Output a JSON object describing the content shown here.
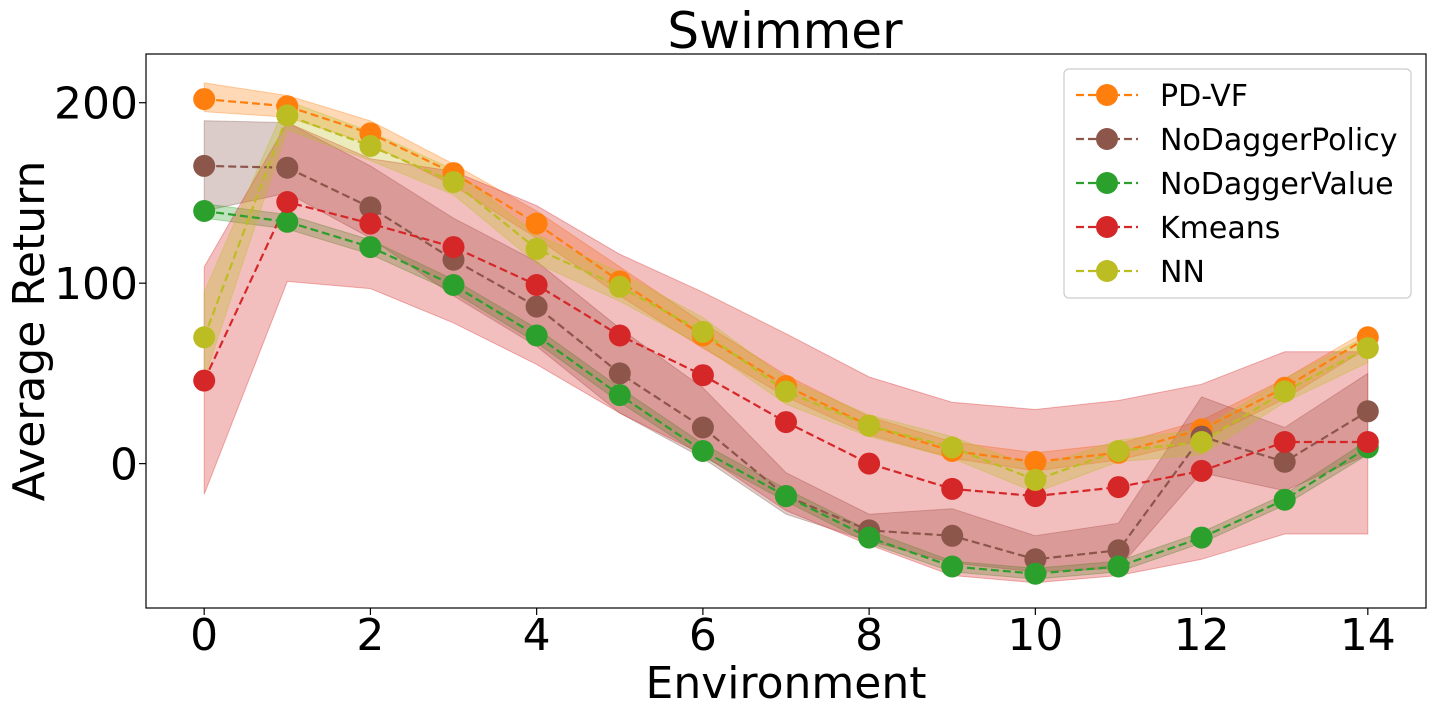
{
  "chart_data": {
    "type": "line",
    "title": "Swimmer",
    "xlabel": "Environment",
    "ylabel": "Average Return",
    "xlim": [
      -0.7,
      14.7
    ],
    "ylim": [
      -80,
      227
    ],
    "x": [
      0,
      1,
      2,
      3,
      4,
      5,
      6,
      7,
      8,
      9,
      10,
      11,
      12,
      13,
      14
    ],
    "xticks": [
      0,
      2,
      4,
      6,
      8,
      10,
      12,
      14
    ],
    "yticks": [
      0,
      100,
      200
    ],
    "legend_position": "top-right",
    "series": [
      {
        "name": "PD-VF",
        "color": "#ff7f0e",
        "values": [
          202,
          198,
          183,
          161,
          133,
          101,
          71,
          43,
          21,
          7,
          1,
          6,
          19,
          42,
          70
        ],
        "lower": [
          195,
          192,
          177,
          154,
          125,
          93,
          64,
          37,
          16,
          3,
          -4,
          2,
          13,
          36,
          64
        ],
        "upper": [
          211,
          204,
          190,
          166,
          140,
          109,
          78,
          49,
          26,
          12,
          6,
          11,
          24,
          47,
          74
        ]
      },
      {
        "name": "NoDaggerPolicy",
        "color": "#8c564b",
        "values": [
          165,
          164,
          142,
          113,
          87,
          50,
          20,
          -18,
          -37,
          -40,
          -53,
          -48,
          15,
          1,
          29
        ],
        "lower": [
          140,
          150,
          125,
          93,
          65,
          28,
          3,
          -28,
          -43,
          -55,
          -60,
          -58,
          -5,
          -15,
          5
        ],
        "upper": [
          190,
          189,
          165,
          136,
          112,
          75,
          42,
          -5,
          -28,
          -25,
          -40,
          -33,
          37,
          20,
          50
        ]
      },
      {
        "name": "NoDaggerValue",
        "color": "#2ca02c",
        "values": [
          140,
          134,
          120,
          99,
          71,
          38,
          7,
          -18,
          -41,
          -57,
          -61,
          -57,
          -41,
          -20,
          9
        ],
        "lower": [
          136,
          130,
          116,
          95,
          67,
          34,
          4,
          -21,
          -44,
          -60,
          -64,
          -60,
          -44,
          -23,
          5
        ],
        "upper": [
          144,
          138,
          124,
          102,
          75,
          42,
          11,
          -14,
          -37,
          -54,
          -58,
          -54,
          -38,
          -17,
          13
        ]
      },
      {
        "name": "Kmeans",
        "color": "#d62728",
        "values": [
          46,
          145,
          133,
          120,
          99,
          71,
          49,
          23,
          0,
          -14,
          -18,
          -13,
          -4,
          12,
          12
        ],
        "lower": [
          -17,
          101,
          97,
          78,
          55,
          28,
          5,
          -26,
          -45,
          -62,
          -66,
          -62,
          -53,
          -39,
          -39
        ],
        "upper": [
          109,
          189,
          169,
          162,
          143,
          116,
          95,
          72,
          48,
          34,
          30,
          35,
          44,
          62,
          62
        ]
      },
      {
        "name": "NN",
        "color": "#bcbd22",
        "values": [
          70,
          193,
          176,
          156,
          119,
          98,
          73,
          40,
          21,
          9,
          -9,
          7,
          12,
          40,
          64
        ],
        "lower": [
          47,
          185,
          168,
          149,
          111,
          90,
          65,
          33,
          15,
          3,
          -16,
          1,
          5,
          34,
          56
        ],
        "upper": [
          95,
          201,
          184,
          163,
          127,
          106,
          81,
          47,
          27,
          15,
          -2,
          13,
          19,
          47,
          71
        ]
      }
    ]
  }
}
